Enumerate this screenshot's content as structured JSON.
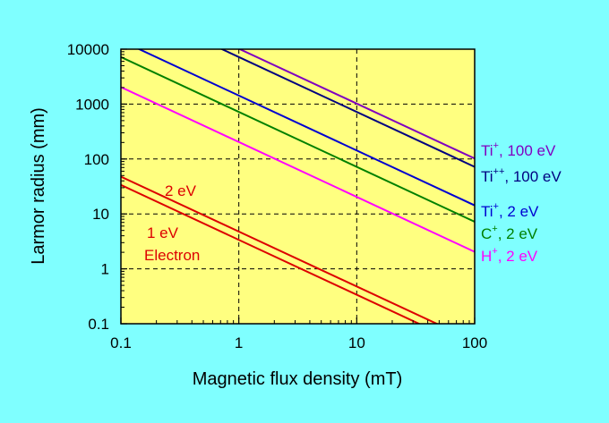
{
  "chart_data": {
    "type": "line",
    "title": "",
    "xlabel": "Magnetic flux density (mT)",
    "ylabel": "Larmor radius (mm)",
    "xscale": "log",
    "yscale": "log",
    "xlim": [
      0.1,
      100
    ],
    "ylim": [
      0.1,
      10000
    ],
    "x_ticks": [
      "0.1",
      "1",
      "10",
      "100"
    ],
    "y_ticks": [
      "0.1",
      "1",
      "10",
      "100",
      "1000",
      "10000"
    ],
    "grid": "dashed",
    "plot_background": "#FFFF80",
    "legend": "inline labels at right",
    "series": [
      {
        "key": "ti100",
        "label_main": "Ti",
        "label_sup": "+",
        "label_tail": ", 100 eV",
        "color": "#8000C0",
        "x": [
          0.1,
          100
        ],
        "y": [
          102000,
          102
        ]
      },
      {
        "key": "tipp100",
        "label_main": "Ti",
        "label_sup": "++",
        "label_tail": ", 100 eV",
        "color": "#000080",
        "x": [
          0.1,
          100
        ],
        "y": [
          72000,
          72
        ]
      },
      {
        "key": "ti2",
        "label_main": "Ti",
        "label_sup": "+",
        "label_tail": ", 2 eV",
        "color": "#0000D0",
        "x": [
          0.1,
          100
        ],
        "y": [
          14300,
          14.3
        ]
      },
      {
        "key": "c2",
        "label_main": "C",
        "label_sup": "+",
        "label_tail": ", 2 eV",
        "color": "#008000",
        "x": [
          0.1,
          100
        ],
        "y": [
          7200,
          7.2
        ]
      },
      {
        "key": "h2",
        "label_main": "H",
        "label_sup": "+",
        "label_tail": ", 2 eV",
        "color": "#FF00FF",
        "x": [
          0.1,
          100
        ],
        "y": [
          2040,
          2.04
        ]
      },
      {
        "key": "e2",
        "label_main": "",
        "label_sup": "",
        "label_tail": "",
        "color": "#DD0000",
        "x": [
          0.1,
          100
        ],
        "y": [
          47.7,
          0.0477
        ]
      },
      {
        "key": "e1",
        "label_main": "",
        "label_sup": "",
        "label_tail": "",
        "color": "#DD0000",
        "x": [
          0.1,
          100
        ],
        "y": [
          33.7,
          0.0337
        ]
      }
    ],
    "annotations": [
      "2 eV",
      "1 eV",
      "Electron"
    ]
  }
}
